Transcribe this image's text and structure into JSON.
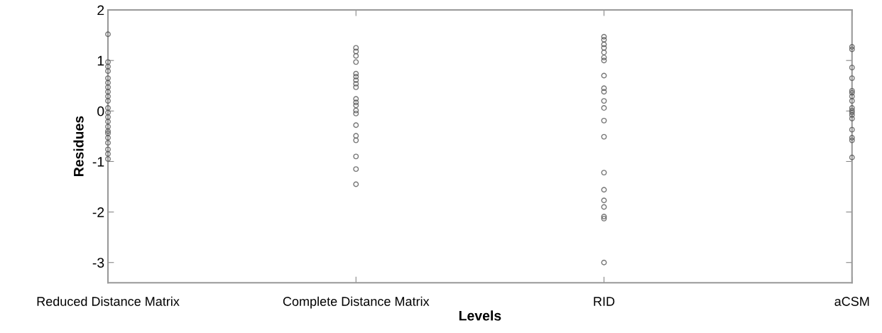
{
  "chart_data": {
    "type": "scatter",
    "xlabel": "Levels",
    "ylabel": "Residues",
    "categories": [
      "Reduced Distance Matrix",
      "Complete Distance Matrix",
      "RID",
      "aCSM"
    ],
    "ylim": [
      -3.4,
      2
    ],
    "yticks": [
      -3,
      -2,
      -1,
      0,
      1,
      2
    ],
    "grid": false,
    "marker": "circle",
    "series": [
      {
        "color": "#555555",
        "x": [
          "Reduced Distance Matrix",
          "Reduced Distance Matrix",
          "Reduced Distance Matrix",
          "Reduced Distance Matrix",
          "Reduced Distance Matrix",
          "Reduced Distance Matrix",
          "Reduced Distance Matrix",
          "Reduced Distance Matrix",
          "Reduced Distance Matrix",
          "Reduced Distance Matrix",
          "Reduced Distance Matrix",
          "Reduced Distance Matrix",
          "Reduced Distance Matrix",
          "Reduced Distance Matrix",
          "Reduced Distance Matrix",
          "Reduced Distance Matrix",
          "Reduced Distance Matrix",
          "Reduced Distance Matrix",
          "Reduced Distance Matrix",
          "Reduced Distance Matrix",
          "Reduced Distance Matrix",
          "Reduced Distance Matrix"
        ],
        "values": [
          1.52,
          0.97,
          0.88,
          0.79,
          0.65,
          0.56,
          0.47,
          0.38,
          0.29,
          0.2,
          0.06,
          -0.03,
          -0.12,
          -0.21,
          -0.31,
          -0.4,
          -0.44,
          -0.53,
          -0.63,
          -0.76,
          -0.85,
          -0.95
        ]
      },
      {
        "color": "#555555",
        "x": [
          "Complete Distance Matrix",
          "Complete Distance Matrix",
          "Complete Distance Matrix",
          "Complete Distance Matrix",
          "Complete Distance Matrix",
          "Complete Distance Matrix",
          "Complete Distance Matrix",
          "Complete Distance Matrix",
          "Complete Distance Matrix",
          "Complete Distance Matrix",
          "Complete Distance Matrix",
          "Complete Distance Matrix",
          "Complete Distance Matrix",
          "Complete Distance Matrix",
          "Complete Distance Matrix",
          "Complete Distance Matrix",
          "Complete Distance Matrix",
          "Complete Distance Matrix",
          "Complete Distance Matrix",
          "Complete Distance Matrix"
        ],
        "values": [
          1.25,
          1.18,
          1.09,
          0.97,
          0.74,
          0.68,
          0.61,
          0.54,
          0.47,
          0.24,
          0.17,
          0.11,
          0.01,
          -0.05,
          -0.28,
          -0.49,
          -0.58,
          -0.9,
          -1.15,
          -1.45
        ]
      },
      {
        "color": "#555555",
        "x": [
          "RID",
          "RID",
          "RID",
          "RID",
          "RID",
          "RID",
          "RID",
          "RID",
          "RID",
          "RID",
          "RID",
          "RID",
          "RID",
          "RID",
          "RID",
          "RID",
          "RID",
          "RID",
          "RID",
          "RID",
          "RID"
        ],
        "values": [
          1.47,
          1.41,
          1.32,
          1.25,
          1.16,
          1.06,
          1.0,
          0.7,
          0.45,
          0.38,
          0.2,
          0.06,
          -0.19,
          -0.51,
          -1.22,
          -1.56,
          -1.77,
          -1.9,
          -2.09,
          -2.13,
          -3.0
        ]
      },
      {
        "color": "#555555",
        "x": [
          "aCSM",
          "aCSM",
          "aCSM",
          "aCSM",
          "aCSM",
          "aCSM",
          "aCSM",
          "aCSM",
          "aCSM",
          "aCSM",
          "aCSM",
          "aCSM",
          "aCSM",
          "aCSM",
          "aCSM",
          "aCSM",
          "aCSM"
        ],
        "values": [
          1.27,
          1.22,
          0.86,
          0.65,
          0.4,
          0.36,
          0.29,
          0.2,
          0.06,
          0.01,
          -0.03,
          -0.08,
          -0.15,
          -0.37,
          -0.53,
          -0.58,
          -0.92
        ]
      }
    ]
  }
}
